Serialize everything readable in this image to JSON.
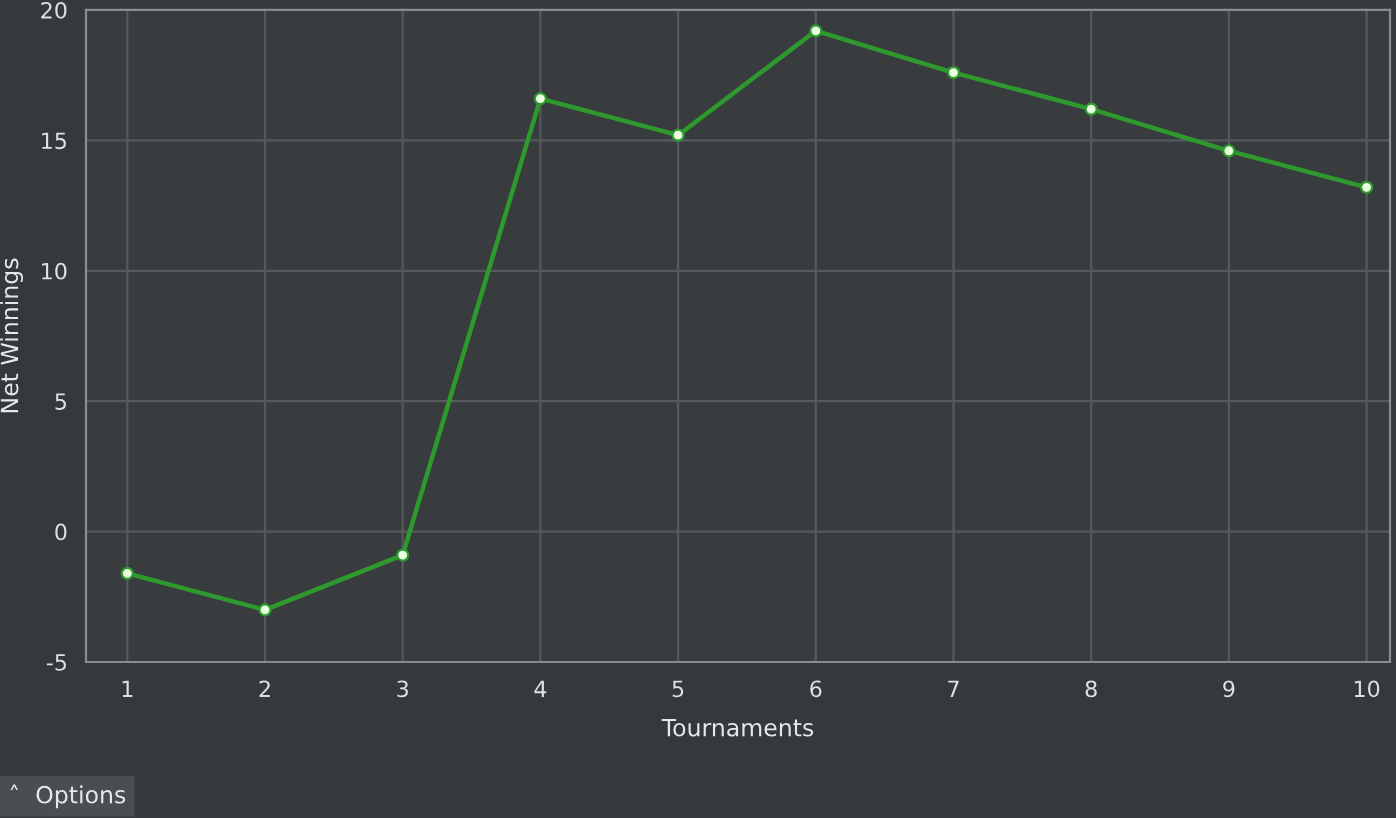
{
  "chart_data": {
    "type": "line",
    "xlabel": "Tournaments",
    "ylabel": "Net Winnings",
    "x": [
      1,
      2,
      3,
      4,
      5,
      6,
      7,
      8,
      9,
      10
    ],
    "series": [
      {
        "color": "#2e9a2e",
        "values": [
          -1.6,
          -3.0,
          -0.9,
          16.6,
          15.2,
          19.2,
          17.6,
          16.2,
          14.6,
          13.2
        ]
      }
    ],
    "xlim": [
      0.7,
      10.17
    ],
    "ylim": [
      -5,
      20
    ],
    "xticks": [
      1,
      2,
      3,
      4,
      5,
      6,
      7,
      8,
      9,
      10
    ],
    "yticks": [
      -5,
      0,
      5,
      10,
      15,
      20
    ],
    "grid": true,
    "marker": "circle",
    "line_style": "solid",
    "annotations": [
      "˄  Options"
    ]
  }
}
